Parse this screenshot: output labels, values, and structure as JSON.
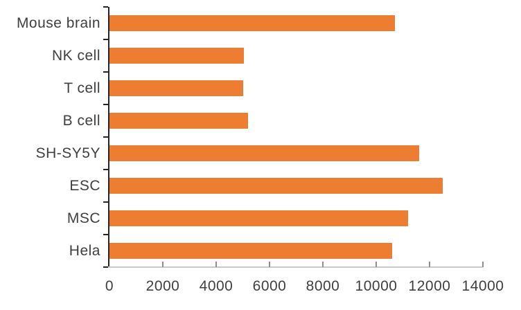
{
  "chart_data": {
    "type": "bar",
    "orientation": "horizontal",
    "title": "",
    "xlabel": "",
    "ylabel": "",
    "categories": [
      "Mouse brain",
      "NK cell",
      "T cell",
      "B cell",
      "SH-SY5Y",
      "ESC",
      "MSC",
      "Hela"
    ],
    "values": [
      10700,
      5050,
      5000,
      5200,
      11600,
      12500,
      11200,
      10600
    ],
    "xlim": [
      0,
      14000
    ],
    "x_ticks": [
      0,
      2000,
      4000,
      6000,
      8000,
      10000,
      12000,
      14000
    ],
    "x_tick_labels": [
      "0",
      "2000",
      "4000",
      "6000",
      "8000",
      "10000",
      "12000",
      "14000"
    ],
    "grid": false,
    "legend": false,
    "colors": {
      "bar_fill": "#ED7D31",
      "y_axis_line": "#262626",
      "x_axis_line": "#C9C9C9",
      "x_tick_mark": "#8F8F8F",
      "text": "#3F3F3F"
    }
  }
}
